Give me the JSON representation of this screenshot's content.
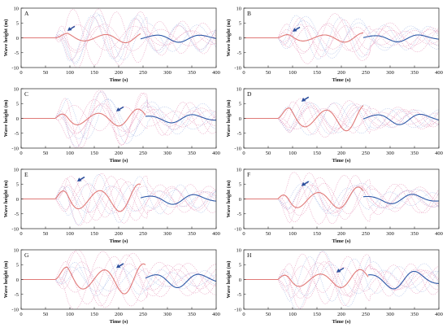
{
  "chart_data": {
    "type": "line",
    "colors": {
      "calc": "#e07a78",
      "obs": "#2f5aa8",
      "env": "#e8a0c0",
      "ref": "#b3c4ea",
      "arrow": "#2c4e9c"
    },
    "panels": [
      {
        "label": "A",
        "xlabel": "Time (s)",
        "ylabel": "Wave height (m)",
        "xlim": [
          0,
          400
        ],
        "ylim": [
          -10,
          10
        ],
        "xticks": [
          "0",
          "50",
          "100",
          "150",
          "200",
          "250",
          "300",
          "350",
          "400"
        ],
        "yticks": [
          "10",
          "5",
          "0",
          "-5",
          "-10"
        ],
        "arrow_time": 95,
        "arrow_height": 2.5,
        "calc_end": 245,
        "amp": 1.6,
        "obs_amp": 1.4,
        "spread": 7,
        "phase": 0.0
      },
      {
        "label": "B",
        "xlabel": "Time (s)",
        "ylabel": "Wave height (m)",
        "xlim": [
          0,
          400
        ],
        "ylim": [
          -10,
          10
        ],
        "xticks": [
          "0",
          "50",
          "100",
          "150",
          "200",
          "250",
          "300",
          "350",
          "400"
        ],
        "yticks": [
          "10",
          "5",
          "0",
          "-5",
          "-10"
        ],
        "arrow_time": 100,
        "arrow_height": 2.2,
        "calc_end": 245,
        "amp": 1.5,
        "obs_amp": 1.3,
        "spread": 7,
        "phase": 0.6
      },
      {
        "label": "C",
        "xlabel": "Time (s)",
        "ylabel": "Wave height (m)",
        "xlim": [
          0,
          400
        ],
        "ylim": [
          -10,
          10
        ],
        "xticks": [
          "0",
          "50",
          "100",
          "150",
          "200",
          "250",
          "300",
          "350",
          "400"
        ],
        "yticks": [
          "10",
          "5",
          "0",
          "-5",
          "-10"
        ],
        "arrow_time": 195,
        "arrow_height": 2.5,
        "calc_end": 255,
        "amp": 2.8,
        "obs_amp": 1.5,
        "spread": 7,
        "phase": 1.1
      },
      {
        "label": "D",
        "xlabel": "Time (s)",
        "ylabel": "Wave height (m)",
        "xlim": [
          0,
          400
        ],
        "ylim": [
          -10,
          10
        ],
        "xticks": [
          "0",
          "50",
          "100",
          "150",
          "200",
          "250",
          "300",
          "350",
          "400"
        ],
        "yticks": [
          "10",
          "5",
          "0",
          "-5",
          "-10"
        ],
        "arrow_time": 118,
        "arrow_height": 5.8,
        "calc_end": 245,
        "amp": 4.2,
        "obs_amp": 2.0,
        "spread": 6,
        "phase": 0.3
      },
      {
        "label": "E",
        "xlabel": "Time (s)",
        "ylabel": "Wave height (m)",
        "xlim": [
          0,
          400
        ],
        "ylim": [
          -10,
          10
        ],
        "xticks": [
          "0",
          "50",
          "100",
          "150",
          "200",
          "250",
          "300",
          "350",
          "400"
        ],
        "yticks": [
          "10",
          "5",
          "0",
          "-5",
          "-10"
        ],
        "arrow_time": 115,
        "arrow_height": 6.0,
        "calc_end": 245,
        "amp": 4.5,
        "obs_amp": 1.8,
        "spread": 6,
        "phase": 0.9
      },
      {
        "label": "F",
        "xlabel": "Time (s)",
        "ylabel": "Wave height (m)",
        "xlim": [
          0,
          400
        ],
        "ylim": [
          -10,
          10
        ],
        "xticks": [
          "0",
          "50",
          "100",
          "150",
          "200",
          "250",
          "300",
          "350",
          "400"
        ],
        "yticks": [
          "10",
          "5",
          "0",
          "-5",
          "-10"
        ],
        "arrow_time": 118,
        "arrow_height": 4.5,
        "calc_end": 245,
        "amp": 3.6,
        "obs_amp": 1.7,
        "spread": 6,
        "phase": 1.5
      },
      {
        "label": "G",
        "xlabel": "Time (s)",
        "ylabel": "Wave height (m)",
        "xlim": [
          0,
          400
        ],
        "ylim": [
          -10,
          10
        ],
        "xticks": [
          "0",
          "50",
          "100",
          "150",
          "200",
          "250",
          "300",
          "350",
          "400"
        ],
        "yticks": [
          "10",
          "5",
          "0",
          "-5",
          "-10"
        ],
        "arrow_time": 195,
        "arrow_height": 4.0,
        "calc_end": 255,
        "amp": 4.8,
        "obs_amp": 2.6,
        "spread": 7,
        "phase": 0.2
      },
      {
        "label": "H",
        "xlabel": "Time (s)",
        "ylabel": "Wave height (m)",
        "xlim": [
          0,
          400
        ],
        "ylim": [
          -10,
          10
        ],
        "xticks": [
          "0",
          "50",
          "100",
          "150",
          "200",
          "250",
          "300",
          "350",
          "400"
        ],
        "yticks": [
          "10",
          "5",
          "0",
          "-5",
          "-10"
        ],
        "arrow_time": 190,
        "arrow_height": 2.5,
        "calc_end": 255,
        "amp": 3.0,
        "obs_amp": 3.2,
        "spread": 7,
        "phase": 1.2
      }
    ]
  }
}
